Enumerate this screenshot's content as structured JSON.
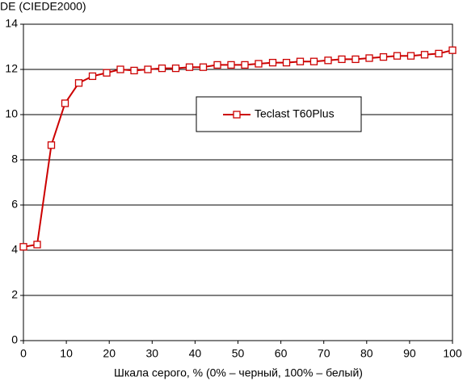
{
  "chart_data": {
    "type": "line",
    "y_label": "DE (CIEDE2000)",
    "x_label": "Шкала серого, % (0% – черный, 100% – белый)",
    "x": [
      0,
      3.2,
      6.5,
      9.7,
      12.9,
      16.1,
      19.4,
      22.6,
      25.8,
      29,
      32.3,
      35.5,
      38.7,
      41.9,
      45.2,
      48.4,
      51.6,
      54.8,
      58.1,
      61.3,
      64.5,
      67.7,
      71,
      74.2,
      77.4,
      80.6,
      83.9,
      87.1,
      90.3,
      93.5,
      96.8,
      100
    ],
    "series": [
      {
        "name": "Teclast T60Plus",
        "color": "#cc0000",
        "values": [
          4.15,
          4.25,
          8.65,
          10.5,
          11.4,
          11.7,
          11.85,
          12.0,
          11.95,
          12.0,
          12.05,
          12.05,
          12.1,
          12.1,
          12.2,
          12.2,
          12.2,
          12.25,
          12.3,
          12.3,
          12.35,
          12.35,
          12.4,
          12.45,
          12.45,
          12.5,
          12.55,
          12.6,
          12.6,
          12.65,
          12.7,
          12.85
        ]
      }
    ],
    "xlim": [
      0,
      100
    ],
    "xticks": [
      0,
      10,
      20,
      30,
      40,
      50,
      60,
      70,
      80,
      90,
      100
    ],
    "ylim": [
      0,
      14
    ],
    "yticks": [
      0,
      2,
      4,
      6,
      8,
      10,
      12,
      14
    ],
    "grid": true,
    "legend": "upper right"
  }
}
